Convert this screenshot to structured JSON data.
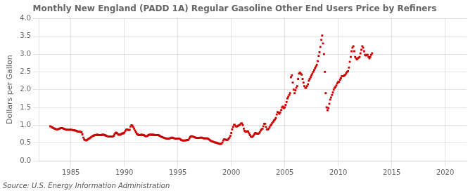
{
  "chart_data": {
    "type": "scatter",
    "title": "Monthly New England (PADD 1A) Regular Gasoline Other End Users Price by Refiners",
    "ylabel": "Dollars per Gallon",
    "source": "Source: U.S. Energy Information Administration",
    "color": "#cc0000",
    "marker": "square",
    "grid": true,
    "xlim": [
      1982,
      2022
    ],
    "xticks": [
      1985,
      1990,
      1995,
      2000,
      2005,
      2010,
      2015,
      2020
    ],
    "ylim": [
      0.0,
      4.0
    ],
    "yticks": [
      {
        "value": 0.0,
        "label": "0.0"
      },
      0.5,
      {
        "value": 1.0,
        "label": "1.0"
      },
      1.5,
      {
        "value": 2.0,
        "label": "2.0"
      },
      2.5,
      {
        "value": 3.0,
        "label": "3.0"
      },
      3.5,
      {
        "value": 4.0,
        "label": "4.0"
      }
    ],
    "x": [
      1983.08,
      1983.17,
      1983.25,
      1983.33,
      1983.42,
      1983.5,
      1983.58,
      1983.67,
      1983.75,
      1983.83,
      1983.92,
      1984.0,
      1984.08,
      1984.17,
      1984.25,
      1984.33,
      1984.42,
      1984.5,
      1984.58,
      1984.67,
      1984.75,
      1984.83,
      1984.92,
      1985.0,
      1985.08,
      1985.17,
      1985.25,
      1985.33,
      1985.42,
      1985.5,
      1985.58,
      1985.67,
      1985.75,
      1985.83,
      1985.92,
      1986.0,
      1986.08,
      1986.17,
      1986.25,
      1986.33,
      1986.42,
      1986.5,
      1986.58,
      1986.67,
      1986.75,
      1986.83,
      1986.92,
      1987.0,
      1987.08,
      1987.17,
      1987.25,
      1987.33,
      1987.42,
      1987.5,
      1987.58,
      1987.67,
      1987.75,
      1987.83,
      1987.92,
      1988.0,
      1988.08,
      1988.17,
      1988.25,
      1988.33,
      1988.42,
      1988.5,
      1988.58,
      1988.67,
      1988.75,
      1988.83,
      1988.92,
      1989.0,
      1989.08,
      1989.17,
      1989.25,
      1989.33,
      1989.42,
      1989.5,
      1989.58,
      1989.67,
      1989.75,
      1989.83,
      1989.92,
      1990.0,
      1990.08,
      1990.17,
      1990.25,
      1990.33,
      1990.42,
      1990.5,
      1990.58,
      1990.67,
      1990.75,
      1990.83,
      1990.92,
      1991.0,
      1991.08,
      1991.17,
      1991.25,
      1991.33,
      1991.42,
      1991.5,
      1991.58,
      1991.67,
      1991.75,
      1991.83,
      1991.92,
      1992.0,
      1992.08,
      1992.17,
      1992.25,
      1992.33,
      1992.42,
      1992.5,
      1992.58,
      1992.67,
      1992.75,
      1992.83,
      1992.92,
      1993.0,
      1993.08,
      1993.17,
      1993.25,
      1993.33,
      1993.42,
      1993.5,
      1993.58,
      1993.67,
      1993.75,
      1993.83,
      1993.92,
      1994.0,
      1994.08,
      1994.17,
      1994.25,
      1994.33,
      1994.42,
      1994.5,
      1994.58,
      1994.67,
      1994.75,
      1994.83,
      1994.92,
      1995.0,
      1995.08,
      1995.17,
      1995.25,
      1995.33,
      1995.42,
      1995.5,
      1995.58,
      1995.67,
      1995.75,
      1995.83,
      1995.92,
      1996.0,
      1996.08,
      1996.17,
      1996.25,
      1996.33,
      1996.42,
      1996.5,
      1996.58,
      1996.67,
      1996.75,
      1996.83,
      1996.92,
      1997.0,
      1997.08,
      1997.17,
      1997.25,
      1997.33,
      1997.42,
      1997.5,
      1997.58,
      1997.67,
      1997.75,
      1997.83,
      1997.92,
      1998.0,
      1998.08,
      1998.17,
      1998.25,
      1998.33,
      1998.42,
      1998.5,
      1998.58,
      1998.67,
      1998.75,
      1998.83,
      1998.92,
      1999.0,
      1999.08,
      1999.17,
      1999.25,
      1999.33,
      1999.42,
      1999.5,
      1999.58,
      1999.67,
      1999.75,
      1999.83,
      1999.92,
      2000.0,
      2000.08,
      2000.17,
      2000.25,
      2000.33,
      2000.42,
      2000.5,
      2000.58,
      2000.67,
      2000.75,
      2000.83,
      2000.92,
      2001.0,
      2001.08,
      2001.17,
      2001.25,
      2001.33,
      2001.42,
      2001.5,
      2001.58,
      2001.67,
      2001.75,
      2001.83,
      2001.92,
      2002.0,
      2002.08,
      2002.17,
      2002.25,
      2002.33,
      2002.42,
      2002.5,
      2002.58,
      2002.67,
      2002.75,
      2002.83,
      2002.92,
      2003.0,
      2003.08,
      2003.17,
      2003.25,
      2003.33,
      2003.42,
      2003.5,
      2003.58,
      2003.67,
      2003.75,
      2003.83,
      2003.92,
      2004.0,
      2004.08,
      2004.17,
      2004.25,
      2004.33,
      2004.42,
      2004.5,
      2004.58,
      2004.67,
      2004.75,
      2004.83,
      2004.92,
      2005.0,
      2005.08,
      2005.17,
      2005.25,
      2005.33,
      2005.42,
      2005.5,
      2005.58,
      2005.67,
      2005.75,
      2005.83,
      2005.92,
      2006.0,
      2006.08,
      2006.17,
      2006.25,
      2006.33,
      2006.42,
      2006.5,
      2006.58,
      2006.67,
      2006.75,
      2006.83,
      2006.92,
      2007.0,
      2007.08,
      2007.17,
      2007.25,
      2007.33,
      2007.42,
      2007.5,
      2007.58,
      2007.67,
      2007.75,
      2007.83,
      2007.92,
      2008.0,
      2008.08,
      2008.17,
      2008.25,
      2008.33,
      2008.42,
      2008.5,
      2008.58,
      2008.67,
      2008.75,
      2008.83,
      2008.92,
      2009.0,
      2009.08,
      2009.17,
      2009.25,
      2009.33,
      2009.42,
      2009.5,
      2009.58,
      2009.67,
      2009.75,
      2009.83,
      2009.92,
      2010.0,
      2010.08,
      2010.17,
      2010.25,
      2010.33,
      2010.42,
      2010.5,
      2010.58,
      2010.67,
      2010.75,
      2010.83,
      2010.92,
      2011.0,
      2011.08,
      2011.17,
      2011.25,
      2011.33,
      2011.42,
      2011.5,
      2011.58,
      2011.67,
      2011.75,
      2011.83,
      2011.92,
      2012.0,
      2012.08,
      2012.17,
      2012.25,
      2012.33,
      2012.42,
      2012.5,
      2012.58,
      2012.67,
      2012.75,
      2012.83,
      2012.92,
      2013.0,
      2013.08,
      2013.17
    ],
    "values": [
      0.97,
      0.95,
      0.94,
      0.92,
      0.91,
      0.9,
      0.89,
      0.88,
      0.88,
      0.89,
      0.9,
      0.91,
      0.92,
      0.92,
      0.91,
      0.9,
      0.89,
      0.88,
      0.87,
      0.87,
      0.87,
      0.87,
      0.87,
      0.87,
      0.87,
      0.86,
      0.86,
      0.85,
      0.85,
      0.84,
      0.83,
      0.82,
      0.82,
      0.82,
      0.81,
      0.8,
      0.74,
      0.65,
      0.6,
      0.58,
      0.57,
      0.58,
      0.6,
      0.62,
      0.63,
      0.65,
      0.67,
      0.69,
      0.7,
      0.71,
      0.72,
      0.72,
      0.73,
      0.73,
      0.72,
      0.72,
      0.72,
      0.72,
      0.73,
      0.73,
      0.73,
      0.72,
      0.71,
      0.7,
      0.69,
      0.68,
      0.68,
      0.68,
      0.68,
      0.68,
      0.68,
      0.7,
      0.74,
      0.78,
      0.79,
      0.77,
      0.74,
      0.73,
      0.73,
      0.74,
      0.76,
      0.77,
      0.77,
      0.79,
      0.83,
      0.87,
      0.88,
      0.87,
      0.86,
      0.87,
      0.96,
      1.0,
      0.99,
      0.95,
      0.9,
      0.85,
      0.8,
      0.76,
      0.74,
      0.72,
      0.72,
      0.72,
      0.73,
      0.73,
      0.72,
      0.72,
      0.7,
      0.69,
      0.69,
      0.7,
      0.72,
      0.73,
      0.73,
      0.73,
      0.73,
      0.73,
      0.73,
      0.72,
      0.72,
      0.72,
      0.72,
      0.72,
      0.71,
      0.7,
      0.68,
      0.67,
      0.66,
      0.65,
      0.64,
      0.63,
      0.63,
      0.62,
      0.62,
      0.62,
      0.63,
      0.64,
      0.65,
      0.65,
      0.64,
      0.63,
      0.62,
      0.62,
      0.62,
      0.62,
      0.62,
      0.62,
      0.6,
      0.58,
      0.57,
      0.57,
      0.57,
      0.57,
      0.57,
      0.58,
      0.58,
      0.59,
      0.63,
      0.67,
      0.69,
      0.69,
      0.68,
      0.67,
      0.66,
      0.65,
      0.64,
      0.64,
      0.64,
      0.64,
      0.65,
      0.65,
      0.65,
      0.64,
      0.63,
      0.63,
      0.63,
      0.63,
      0.63,
      0.62,
      0.6,
      0.58,
      0.56,
      0.55,
      0.54,
      0.53,
      0.52,
      0.51,
      0.51,
      0.5,
      0.49,
      0.48,
      0.47,
      0.47,
      0.48,
      0.51,
      0.57,
      0.6,
      0.6,
      0.59,
      0.58,
      0.59,
      0.62,
      0.65,
      0.7,
      0.78,
      0.88,
      0.95,
      1.01,
      1.01,
      0.97,
      0.96,
      0.97,
      0.99,
      1.0,
      1.02,
      1.05,
      1.05,
      1.0,
      0.9,
      0.84,
      0.82,
      0.82,
      0.83,
      0.82,
      0.77,
      0.72,
      0.68,
      0.67,
      0.68,
      0.71,
      0.75,
      0.78,
      0.77,
      0.76,
      0.76,
      0.77,
      0.8,
      0.85,
      0.88,
      0.9,
      0.97,
      1.04,
      1.04,
      0.95,
      0.88,
      0.88,
      0.9,
      0.94,
      0.99,
      1.02,
      1.06,
      1.1,
      1.13,
      1.16,
      1.2,
      1.3,
      1.37,
      1.35,
      1.32,
      1.36,
      1.43,
      1.5,
      1.52,
      1.48,
      1.5,
      1.57,
      1.65,
      1.75,
      1.8,
      1.85,
      1.9,
      2.35,
      2.4,
      2.2,
      2.0,
      1.9,
      1.98,
      2.05,
      2.1,
      2.3,
      2.45,
      2.48,
      2.45,
      2.42,
      2.3,
      2.2,
      2.1,
      2.05,
      2.05,
      2.1,
      2.15,
      2.25,
      2.3,
      2.35,
      2.4,
      2.45,
      2.5,
      2.55,
      2.6,
      2.65,
      2.7,
      2.8,
      2.95,
      3.05,
      3.2,
      3.4,
      3.52,
      3.3,
      3.0,
      2.5,
      1.9,
      1.5,
      1.42,
      1.48,
      1.6,
      1.72,
      1.78,
      1.85,
      1.92,
      2.0,
      2.05,
      2.08,
      2.12,
      2.18,
      2.22,
      2.22,
      2.28,
      2.32,
      2.38,
      2.38,
      2.38,
      2.4,
      2.42,
      2.46,
      2.5,
      2.52,
      2.62,
      2.78,
      2.92,
      3.08,
      3.18,
      3.22,
      3.08,
      2.92,
      2.88,
      2.85,
      2.88,
      2.9,
      2.92,
      3.02,
      3.12,
      3.22,
      3.18,
      3.08,
      2.98,
      2.96,
      2.98,
      2.98,
      2.92,
      2.88,
      2.92,
      2.98,
      3.02
    ]
  }
}
